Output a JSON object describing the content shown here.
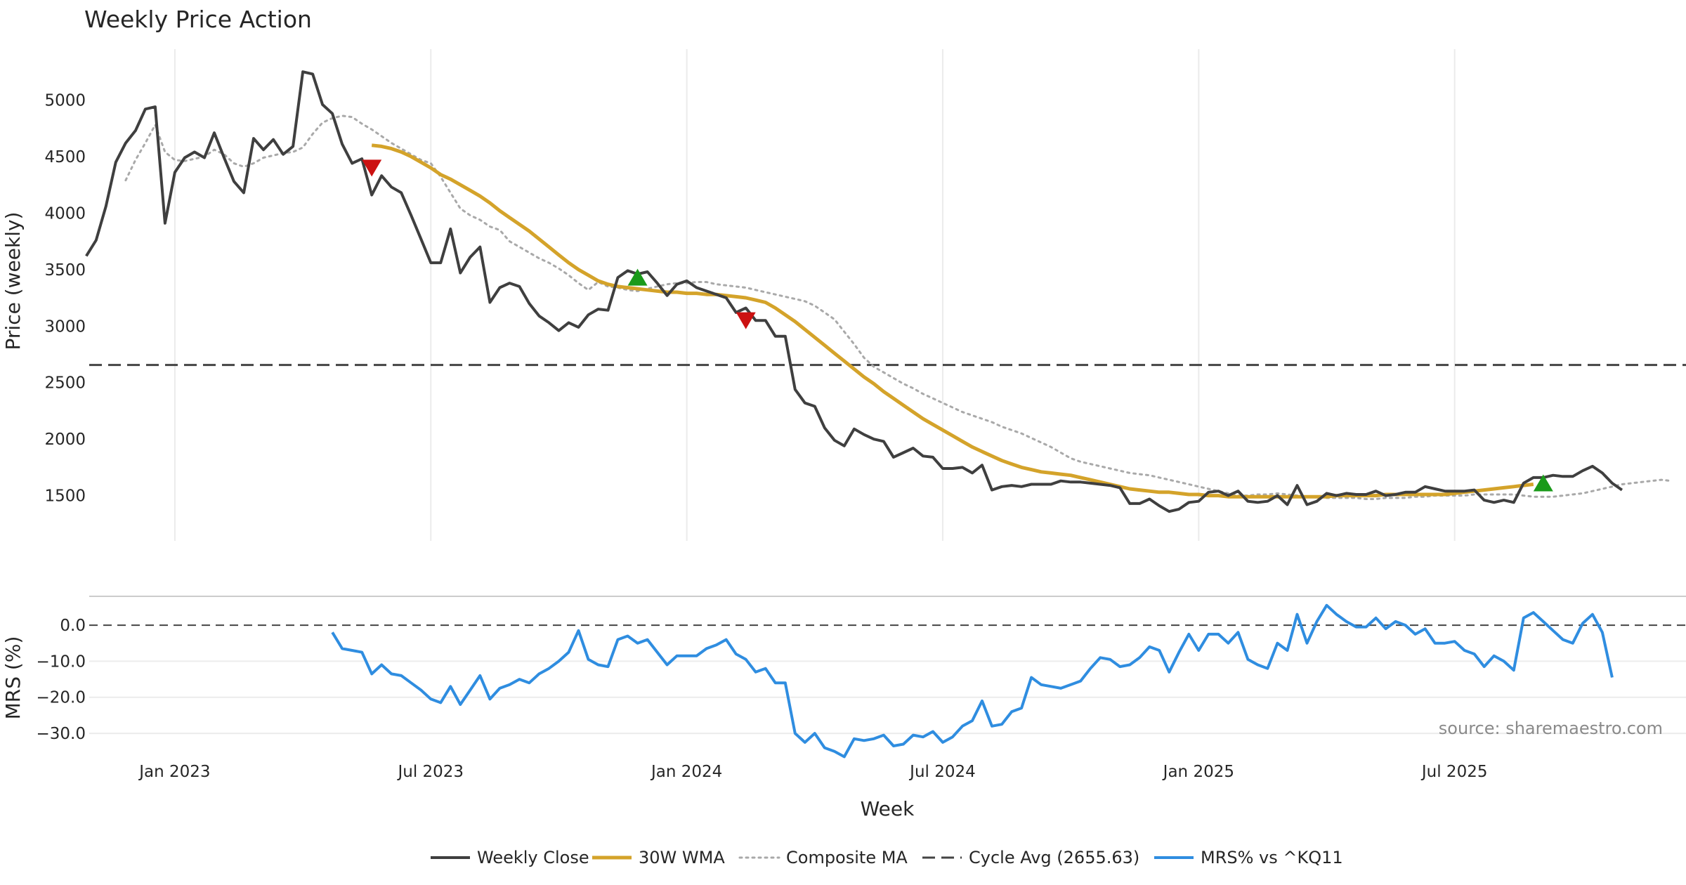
{
  "chart_data": {
    "type": "line",
    "title": "Weekly Price Action",
    "source": "source: sharemaestro.com",
    "xlabel": "Week",
    "x_ticks": [
      "Jan 2023",
      "Jul 2023",
      "Jan 2024",
      "Jul 2024",
      "Jan 2025",
      "Jul 2025"
    ],
    "x_tick_weeks": [
      14,
      40,
      66,
      92,
      118,
      144
    ],
    "x_range": [
      5.3,
      167.5
    ],
    "price_panel": {
      "ylabel": "Price (weekly)",
      "ylim": [
        1100,
        5450
      ],
      "yticks": [
        "1500",
        "2000",
        "2500",
        "3000",
        "3500",
        "4000",
        "4500",
        "5000"
      ],
      "ytick_values": [
        1500,
        2000,
        2500,
        3000,
        3500,
        4000,
        4500,
        5000
      ],
      "grid": "vertical"
    },
    "mrs_panel": {
      "ylabel": "MRS (%)",
      "ylim": [
        -37,
        8
      ],
      "yticks": [
        "0.0",
        "−10.0",
        "−20.0",
        "−30.0"
      ],
      "ytick_values": [
        0,
        -10,
        -20,
        -30
      ],
      "grid": "horizontal"
    },
    "series": [
      {
        "name": "Weekly Close",
        "color": "#3f3f3f",
        "style": "solid",
        "panel": "price",
        "start_week": 5,
        "values": [
          3620,
          3760,
          4060,
          4450,
          4620,
          4730,
          4920,
          4940,
          3910,
          4360,
          4490,
          4540,
          4490,
          4710,
          4490,
          4280,
          4180,
          4660,
          4560,
          4650,
          4520,
          4590,
          5250,
          5230,
          4960,
          4880,
          4610,
          4440,
          4480,
          4160,
          4330,
          4230,
          4180,
          3980,
          3770,
          3560,
          3560,
          3860,
          3470,
          3610,
          3700,
          3210,
          3340,
          3380,
          3350,
          3200,
          3090,
          3030,
          2960,
          3030,
          2990,
          3100,
          3150,
          3140,
          3430,
          3490,
          3460,
          3480,
          3380,
          3270,
          3370,
          3400,
          3340,
          3310,
          3280,
          3250,
          3120,
          3160,
          3050,
          3050,
          2910,
          2910,
          2440,
          2320,
          2290,
          2100,
          1990,
          1940,
          2090,
          2040,
          2000,
          1980,
          1840,
          1880,
          1920,
          1850,
          1840,
          1740,
          1740,
          1750,
          1700,
          1770,
          1550,
          1580,
          1590,
          1580,
          1600,
          1600,
          1600,
          1630,
          1620,
          1620,
          1610,
          1600,
          1590,
          1570,
          1430,
          1430,
          1470,
          1410,
          1360,
          1380,
          1440,
          1450,
          1530,
          1540,
          1500,
          1540,
          1450,
          1440,
          1450,
          1500,
          1420,
          1590,
          1420,
          1450,
          1520,
          1500,
          1520,
          1510,
          1510,
          1540,
          1500,
          1510,
          1530,
          1530,
          1580,
          1560,
          1540,
          1540,
          1540,
          1550,
          1460,
          1440,
          1460,
          1440,
          1610,
          1660,
          1660,
          1680,
          1670,
          1670,
          1720,
          1760,
          1700,
          1610,
          1550
        ]
      },
      {
        "name": "30W WMA",
        "color": "#d4a32a",
        "style": "solid",
        "panel": "price",
        "start_week": 34,
        "values": [
          4600,
          4590,
          4570,
          4540,
          4500,
          4450,
          4400,
          4340,
          4300,
          4250,
          4200,
          4150,
          4090,
          4020,
          3960,
          3900,
          3840,
          3770,
          3700,
          3630,
          3560,
          3500,
          3450,
          3400,
          3370,
          3350,
          3340,
          3330,
          3320,
          3310,
          3300,
          3300,
          3290,
          3290,
          3280,
          3280,
          3270,
          3260,
          3250,
          3230,
          3210,
          3160,
          3100,
          3040,
          2970,
          2900,
          2830,
          2760,
          2690,
          2620,
          2550,
          2490,
          2420,
          2360,
          2300,
          2240,
          2180,
          2130,
          2080,
          2030,
          1980,
          1930,
          1890,
          1850,
          1810,
          1780,
          1750,
          1730,
          1710,
          1700,
          1690,
          1680,
          1660,
          1640,
          1620,
          1600,
          1580,
          1560,
          1550,
          1540,
          1530,
          1530,
          1520,
          1510,
          1510,
          1500,
          1500,
          1490,
          1490,
          1490,
          1490,
          1490,
          1490,
          1490,
          1490,
          1490,
          1490,
          1490,
          1500,
          1500,
          1500,
          1500,
          1500,
          1510,
          1510,
          1510,
          1510,
          1510,
          1510,
          1510,
          1520,
          1530,
          1540,
          1550,
          1560,
          1570,
          1580,
          1590,
          1600
        ]
      },
      {
        "name": "Composite MA",
        "color": "#a9a9a9",
        "style": "dotted",
        "panel": "price",
        "start_week": 9,
        "values": [
          4290,
          4470,
          4620,
          4780,
          4540,
          4470,
          4460,
          4480,
          4500,
          4560,
          4520,
          4440,
          4410,
          4440,
          4490,
          4510,
          4530,
          4540,
          4580,
          4700,
          4800,
          4840,
          4860,
          4850,
          4790,
          4740,
          4680,
          4620,
          4570,
          4520,
          4470,
          4440,
          4320,
          4180,
          4040,
          3980,
          3940,
          3880,
          3850,
          3750,
          3700,
          3650,
          3600,
          3560,
          3510,
          3450,
          3380,
          3320,
          3390,
          3350,
          3340,
          3320,
          3310,
          3330,
          3350,
          3370,
          3380,
          3380,
          3390,
          3390,
          3370,
          3360,
          3350,
          3340,
          3320,
          3300,
          3280,
          3260,
          3240,
          3220,
          3180,
          3120,
          3060,
          2950,
          2840,
          2720,
          2640,
          2590,
          2540,
          2490,
          2450,
          2400,
          2360,
          2320,
          2280,
          2240,
          2210,
          2180,
          2150,
          2110,
          2080,
          2050,
          2010,
          1970,
          1930,
          1880,
          1830,
          1800,
          1780,
          1760,
          1740,
          1720,
          1700,
          1690,
          1680,
          1660,
          1640,
          1620,
          1600,
          1580,
          1560,
          1540,
          1520,
          1500,
          1500,
          1510,
          1510,
          1520,
          1510,
          1500,
          1490,
          1490,
          1480,
          1480,
          1480,
          1480,
          1470,
          1470,
          1480,
          1480,
          1480,
          1490,
          1490,
          1500,
          1500,
          1500,
          1500,
          1510,
          1510,
          1510,
          1510,
          1510,
          1500,
          1490,
          1490,
          1490,
          1500,
          1510,
          1520,
          1540,
          1560,
          1580,
          1600,
          1610,
          1620,
          1630,
          1640,
          1630
        ]
      },
      {
        "name": "Cycle Avg (2655.63)",
        "color": "#444444",
        "style": "dashed",
        "panel": "price",
        "value": 2655.63
      },
      {
        "name": "MRS% vs ^KQ11",
        "color": "#2f8de0",
        "style": "solid",
        "panel": "mrs",
        "start_week": 30,
        "values": [
          -2,
          -6.5,
          -7,
          -7.5,
          -13.5,
          -11,
          -13.5,
          -14,
          -16,
          -18,
          -20.5,
          -21.5,
          -17,
          -22,
          -18,
          -14,
          -20.5,
          -17.5,
          -16.5,
          -15,
          -16,
          -13.5,
          -12,
          -10,
          -7.5,
          -1.5,
          -9.5,
          -11,
          -11.5,
          -4,
          -3,
          -5,
          -4,
          -7.5,
          -11,
          -8.5,
          -8.5,
          -8.5,
          -6.5,
          -5.5,
          -4,
          -8,
          -9.5,
          -13,
          -12,
          -16,
          -16,
          -30,
          -32.5,
          -30,
          -34,
          -35,
          -36.5,
          -31.5,
          -32,
          -31.5,
          -30.5,
          -33.5,
          -33,
          -30.5,
          -31,
          -29.5,
          -32.5,
          -31,
          -28,
          -26.5,
          -21,
          -28,
          -27.5,
          -24,
          -23,
          -14.5,
          -16.5,
          -17,
          -17.5,
          -16.5,
          -15.5,
          -12,
          -9,
          -9.5,
          -11.5,
          -11,
          -9,
          -6,
          -7,
          -13,
          -7.5,
          -2.5,
          -7,
          -2.5,
          -2.5,
          -5,
          -2,
          -9.5,
          -11,
          -12,
          -5,
          -7,
          3,
          -5,
          1,
          5.5,
          3,
          1,
          -0.5,
          -0.5,
          2,
          -1,
          1,
          0,
          -2.5,
          -1,
          -5,
          -5,
          -4.5,
          -7,
          -8,
          -11.5,
          -8.5,
          -10,
          -12.5,
          2,
          3.5,
          1,
          -1.5,
          -4,
          -5,
          0.5,
          3,
          -2,
          -14.5
        ]
      }
    ],
    "markers": [
      {
        "type": "sell",
        "symbol": "▼",
        "color": "#cc1111",
        "week": 34,
        "price": 4410
      },
      {
        "type": "buy",
        "symbol": "▲",
        "color": "#1a9a1a",
        "week": 61,
        "price": 3420
      },
      {
        "type": "sell",
        "symbol": "▼",
        "color": "#cc1111",
        "week": 72,
        "price": 3060
      },
      {
        "type": "buy",
        "symbol": "▲",
        "color": "#1a9a1a",
        "week": 153,
        "price": 1600
      }
    ],
    "legend": {
      "placement": "bottom-center",
      "entries": [
        "Weekly Close",
        "30W WMA",
        "Composite MA",
        "Cycle Avg (2655.63)",
        "MRS% vs ^KQ11"
      ]
    }
  }
}
